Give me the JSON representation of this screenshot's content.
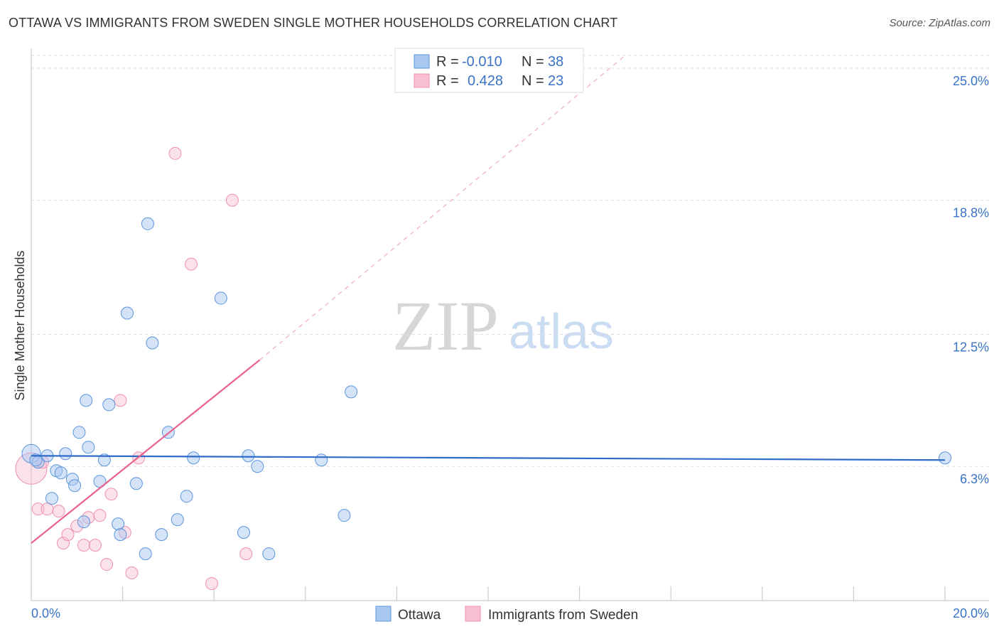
{
  "header": {
    "title": "OTTAWA VS IMMIGRANTS FROM SWEDEN SINGLE MOTHER HOUSEHOLDS CORRELATION CHART",
    "source": "Source: ZipAtlas.com"
  },
  "watermark": {
    "zip": "ZIP",
    "atlas": "atlas"
  },
  "legend": {
    "rows": [
      {
        "r_label": "R =",
        "r_value": "-0.010",
        "n_label": "N =",
        "n_value": "38",
        "color": "#a9c8f0"
      },
      {
        "r_label": "R =",
        "r_value": "0.428",
        "n_label": "N =",
        "n_value": "23",
        "color": "#f7bfd0"
      }
    ]
  },
  "bottom_legend": [
    "Ottawa",
    "Immigrants from Sweden"
  ],
  "chart_data": {
    "type": "scatter",
    "title": "OTTAWA VS IMMIGRANTS FROM SWEDEN SINGLE MOTHER HOUSEHOLDS CORRELATION CHART",
    "ylabel": "Single Mother Households",
    "xlabel": "",
    "xlim": [
      0,
      20
    ],
    "ylim": [
      0,
      25.6
    ],
    "x_tick_labels": [
      "0.0%",
      "20.0%"
    ],
    "y_ticks": [
      6.3,
      12.5,
      18.8,
      25.0
    ],
    "y_tick_labels": [
      "6.3%",
      "12.5%",
      "18.8%",
      "25.0%"
    ],
    "grid": true,
    "legend_position": "top-center",
    "colors": {
      "ottawa": "#5b95dc",
      "sweden": "#ef90ad",
      "ottawa_line": "#2f6cc7",
      "sweden_line": "#e8628c"
    },
    "series": [
      {
        "name": "Ottawa",
        "points": [
          [
            0.0,
            6.9
          ],
          [
            0.15,
            6.5
          ],
          [
            0.35,
            6.8
          ],
          [
            0.75,
            6.9
          ],
          [
            0.55,
            6.1
          ],
          [
            0.65,
            6.0
          ],
          [
            0.9,
            5.7
          ],
          [
            0.95,
            5.4
          ],
          [
            1.5,
            5.6
          ],
          [
            2.3,
            5.5
          ],
          [
            0.45,
            4.8
          ],
          [
            1.15,
            3.7
          ],
          [
            1.9,
            3.6
          ],
          [
            1.95,
            3.1
          ],
          [
            2.85,
            3.1
          ],
          [
            3.2,
            3.8
          ],
          [
            3.4,
            4.9
          ],
          [
            2.5,
            2.2
          ],
          [
            1.05,
            7.9
          ],
          [
            1.25,
            7.2
          ],
          [
            1.6,
            6.6
          ],
          [
            3.55,
            6.7
          ],
          [
            4.75,
            6.8
          ],
          [
            4.95,
            6.3
          ],
          [
            6.35,
            6.6
          ],
          [
            1.2,
            9.4
          ],
          [
            1.7,
            9.2
          ],
          [
            3.0,
            7.9
          ],
          [
            2.65,
            12.1
          ],
          [
            2.1,
            13.5
          ],
          [
            2.55,
            17.7
          ],
          [
            4.15,
            14.2
          ],
          [
            7.0,
            9.8
          ],
          [
            4.65,
            3.2
          ],
          [
            5.2,
            2.2
          ],
          [
            6.85,
            4.0
          ],
          [
            20.0,
            6.7
          ],
          [
            0.1,
            6.6
          ]
        ]
      },
      {
        "name": "Immigrants from Sweden",
        "points": [
          [
            0.0,
            6.2
          ],
          [
            0.15,
            4.3
          ],
          [
            0.35,
            4.3
          ],
          [
            0.6,
            4.2
          ],
          [
            0.7,
            2.7
          ],
          [
            0.8,
            3.1
          ],
          [
            1.0,
            3.5
          ],
          [
            1.15,
            2.6
          ],
          [
            1.4,
            2.6
          ],
          [
            1.25,
            3.9
          ],
          [
            1.5,
            4.0
          ],
          [
            1.65,
            1.7
          ],
          [
            1.75,
            5.0
          ],
          [
            1.95,
            9.4
          ],
          [
            2.05,
            3.2
          ],
          [
            2.2,
            1.3
          ],
          [
            2.35,
            6.7
          ],
          [
            3.15,
            21.0
          ],
          [
            3.5,
            15.8
          ],
          [
            4.4,
            18.8
          ],
          [
            4.7,
            2.2
          ],
          [
            3.95,
            0.8
          ],
          [
            0.25,
            6.5
          ]
        ]
      }
    ],
    "trendlines": [
      {
        "series": "Ottawa",
        "x": [
          0,
          20
        ],
        "y": [
          6.8,
          6.6
        ]
      },
      {
        "series": "Immigrants from Sweden",
        "x": [
          0,
          5.0
        ],
        "y": [
          2.7,
          11.3
        ],
        "extension_x": [
          5.0,
          13.0
        ],
        "extension_y": [
          11.3,
          25.6
        ]
      }
    ]
  }
}
